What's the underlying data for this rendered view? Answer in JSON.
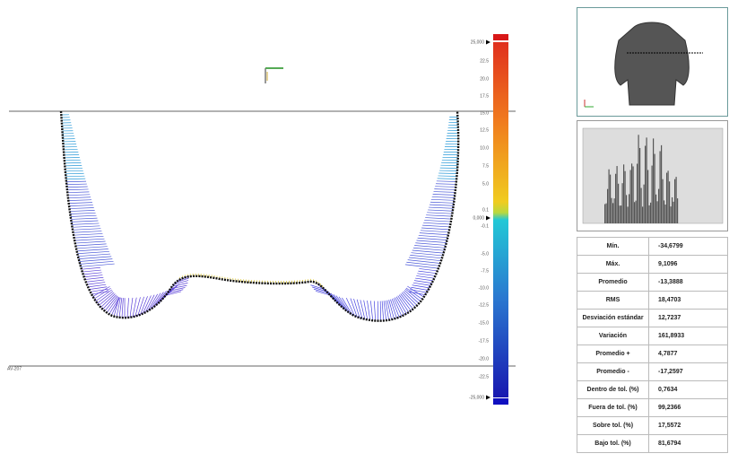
{
  "view": {
    "corner_label": "AV-207"
  },
  "scale": {
    "labels": [
      "25,000",
      "22.5",
      "20.0",
      "17.5",
      "15.0",
      "12.5",
      "10.0",
      "7.5",
      "5.0",
      "0.1",
      "0,000",
      "-0.1",
      "-5.0",
      "-7.5",
      "-10.0",
      "-12.5",
      "-15.0",
      "-17.5",
      "-20.0",
      "-22.5",
      "-25,000"
    ]
  },
  "table": {
    "rows": [
      [
        "Mín.",
        "-34,6799"
      ],
      [
        "Máx.",
        "9,1096"
      ],
      [
        "Promedio",
        "-13,3888"
      ],
      [
        "RMS",
        "18,4703"
      ],
      [
        "Desviación estándar",
        "12,7237"
      ],
      [
        "Variación",
        "161,8933"
      ],
      [
        "Promedio +",
        "4,7877"
      ],
      [
        "Promedio -",
        "-17,2597"
      ],
      [
        "Dentro de tol. (%)",
        "0,7634"
      ],
      [
        "Fuera de tol. (%)",
        "99,2366"
      ],
      [
        "Sobre tol. (%)",
        "17,5572"
      ],
      [
        "Bajo tol. (%)",
        "81,6794"
      ]
    ]
  }
}
